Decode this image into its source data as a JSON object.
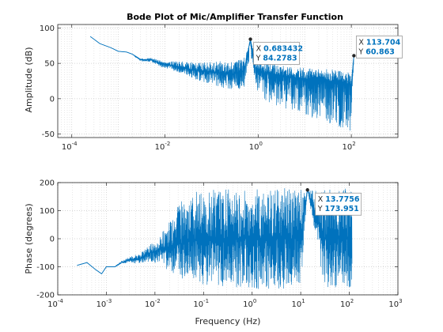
{
  "chart_data": [
    {
      "type": "line",
      "title": "Bode Plot of Mic/Amplifier Transfer Function",
      "xlabel": "",
      "ylabel": "Amplitude (dB)",
      "xscale": "log",
      "xlim": [
        5e-05,
        1000
      ],
      "ylim": [
        -55,
        105
      ],
      "grid": true,
      "x_ticks": [
        {
          "value": 0.0001,
          "base": "10",
          "exp": "-4"
        },
        {
          "value": 0.01,
          "base": "10",
          "exp": "-2"
        },
        {
          "value": 1,
          "base": "10",
          "exp": "0"
        },
        {
          "value": 100,
          "base": "10",
          "exp": "2"
        }
      ],
      "y_ticks": [
        -50,
        0,
        50,
        100
      ],
      "color": "#0072BD",
      "series": [
        {
          "x": [
            0.00025,
            0.0004,
            0.0007,
            0.001,
            0.0015,
            0.002,
            0.003,
            0.005,
            0.008,
            0.012,
            0.02,
            0.03,
            0.05,
            0.08,
            0.12,
            0.2,
            0.3,
            0.5,
            0.683432,
            0.9,
            1.5,
            3,
            6,
            10,
            20,
            40,
            70,
            100,
            113.704
          ],
          "y": [
            88,
            78,
            72,
            67,
            66,
            63,
            55,
            55,
            50,
            48,
            45,
            42,
            40,
            38,
            37,
            36,
            35,
            40,
            84.2783,
            40,
            36,
            33,
            30,
            28,
            26,
            24,
            22,
            20,
            60.863
          ],
          "spread_low": [
            0,
            0,
            0,
            0,
            0,
            0,
            2,
            3,
            5,
            6,
            8,
            10,
            14,
            16,
            18,
            22,
            24,
            26,
            20,
            30,
            40,
            45,
            48,
            52,
            58,
            62,
            66,
            68,
            0
          ],
          "spread_high": [
            0,
            0,
            0,
            0,
            0,
            0,
            2,
            3,
            4,
            5,
            8,
            10,
            12,
            14,
            16,
            18,
            18,
            18,
            0,
            18,
            16,
            14,
            14,
            16,
            16,
            18,
            18,
            20,
            0
          ]
        }
      ],
      "datatips": [
        {
          "x_label": "X",
          "x_value": "0.683432",
          "y_label": "Y",
          "y_value": "84.2783",
          "x": 0.683432,
          "y": 84.2783
        },
        {
          "x_label": "X",
          "x_value": "113.704",
          "y_label": "Y",
          "y_value": "60.863",
          "x": 113.704,
          "y": 60.863
        }
      ]
    },
    {
      "type": "line",
      "title": "",
      "xlabel": "Frequency (Hz)",
      "ylabel": "Phase (degrees)",
      "xscale": "log",
      "xlim": [
        0.0001,
        1000
      ],
      "ylim": [
        -200,
        200
      ],
      "grid": true,
      "x_ticks": [
        {
          "value": 0.0001,
          "base": "10",
          "exp": "-4"
        },
        {
          "value": 0.001,
          "base": "10",
          "exp": "-3"
        },
        {
          "value": 0.01,
          "base": "10",
          "exp": "-2"
        },
        {
          "value": 0.1,
          "base": "10",
          "exp": "-1"
        },
        {
          "value": 1,
          "base": "10",
          "exp": "0"
        },
        {
          "value": 10,
          "base": "10",
          "exp": "1"
        },
        {
          "value": 100,
          "base": "10",
          "exp": "2"
        },
        {
          "value": 1000,
          "base": "10",
          "exp": "3"
        }
      ],
      "y_ticks": [
        -200,
        -100,
        0,
        100,
        200
      ],
      "color": "#0072BD",
      "series": [
        {
          "x": [
            0.00025,
            0.0004,
            0.0006,
            0.0008,
            0.001,
            0.0015,
            0.002,
            0.003,
            0.005,
            0.008,
            0.012,
            0.02,
            0.03,
            0.05,
            0.08,
            0.12,
            0.2,
            0.3,
            0.5,
            0.8,
            1,
            2,
            5,
            10,
            13.7756,
            30,
            60,
            100,
            113.704
          ],
          "y": [
            -95,
            -85,
            -110,
            -125,
            -100,
            -100,
            -85,
            -75,
            -70,
            -50,
            -40,
            -30,
            -20,
            -10,
            0,
            0,
            0,
            0,
            0,
            0,
            0,
            0,
            0,
            0,
            173.951,
            0,
            0,
            0,
            0
          ],
          "spread_low": [
            0,
            0,
            0,
            0,
            0,
            0,
            5,
            10,
            20,
            30,
            50,
            90,
            130,
            150,
            160,
            170,
            170,
            175,
            178,
            180,
            180,
            180,
            180,
            180,
            0,
            180,
            180,
            180,
            180
          ],
          "spread_high": [
            0,
            0,
            0,
            0,
            0,
            0,
            5,
            10,
            20,
            30,
            40,
            100,
            150,
            170,
            175,
            175,
            175,
            178,
            180,
            180,
            180,
            180,
            180,
            180,
            0,
            180,
            180,
            180,
            180
          ]
        }
      ],
      "datatips": [
        {
          "x_label": "X",
          "x_value": "13.7756",
          "y_label": "Y",
          "y_value": "173.951",
          "x": 13.7756,
          "y": 173.951
        }
      ]
    }
  ]
}
